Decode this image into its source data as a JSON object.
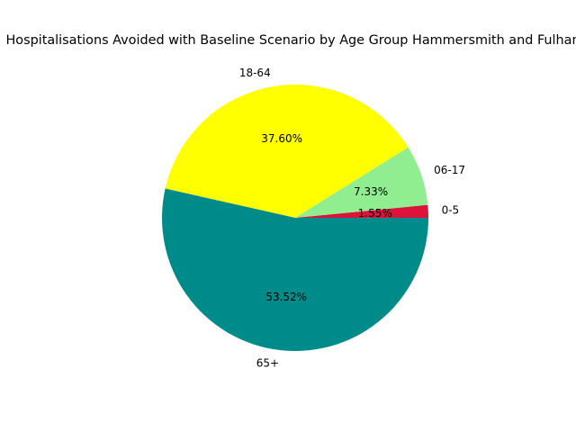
{
  "chart_data": {
    "type": "pie",
    "title": "Hospitalisations Avoided with Baseline Scenario by Age Group Hammersmith and Fulham",
    "categories": [
      "0-5",
      "06-17",
      "18-64",
      "65+"
    ],
    "values": [
      1.55,
      7.33,
      37.6,
      53.52
    ],
    "percent_labels": [
      "1.55%",
      "7.33%",
      "37.60%",
      "53.52%"
    ],
    "colors": [
      "#dc143c",
      "#90ee90",
      "#ffff00",
      "#008b8b"
    ],
    "start_angle_deg": 0,
    "direction": "counterclockwise",
    "legend": "none"
  }
}
